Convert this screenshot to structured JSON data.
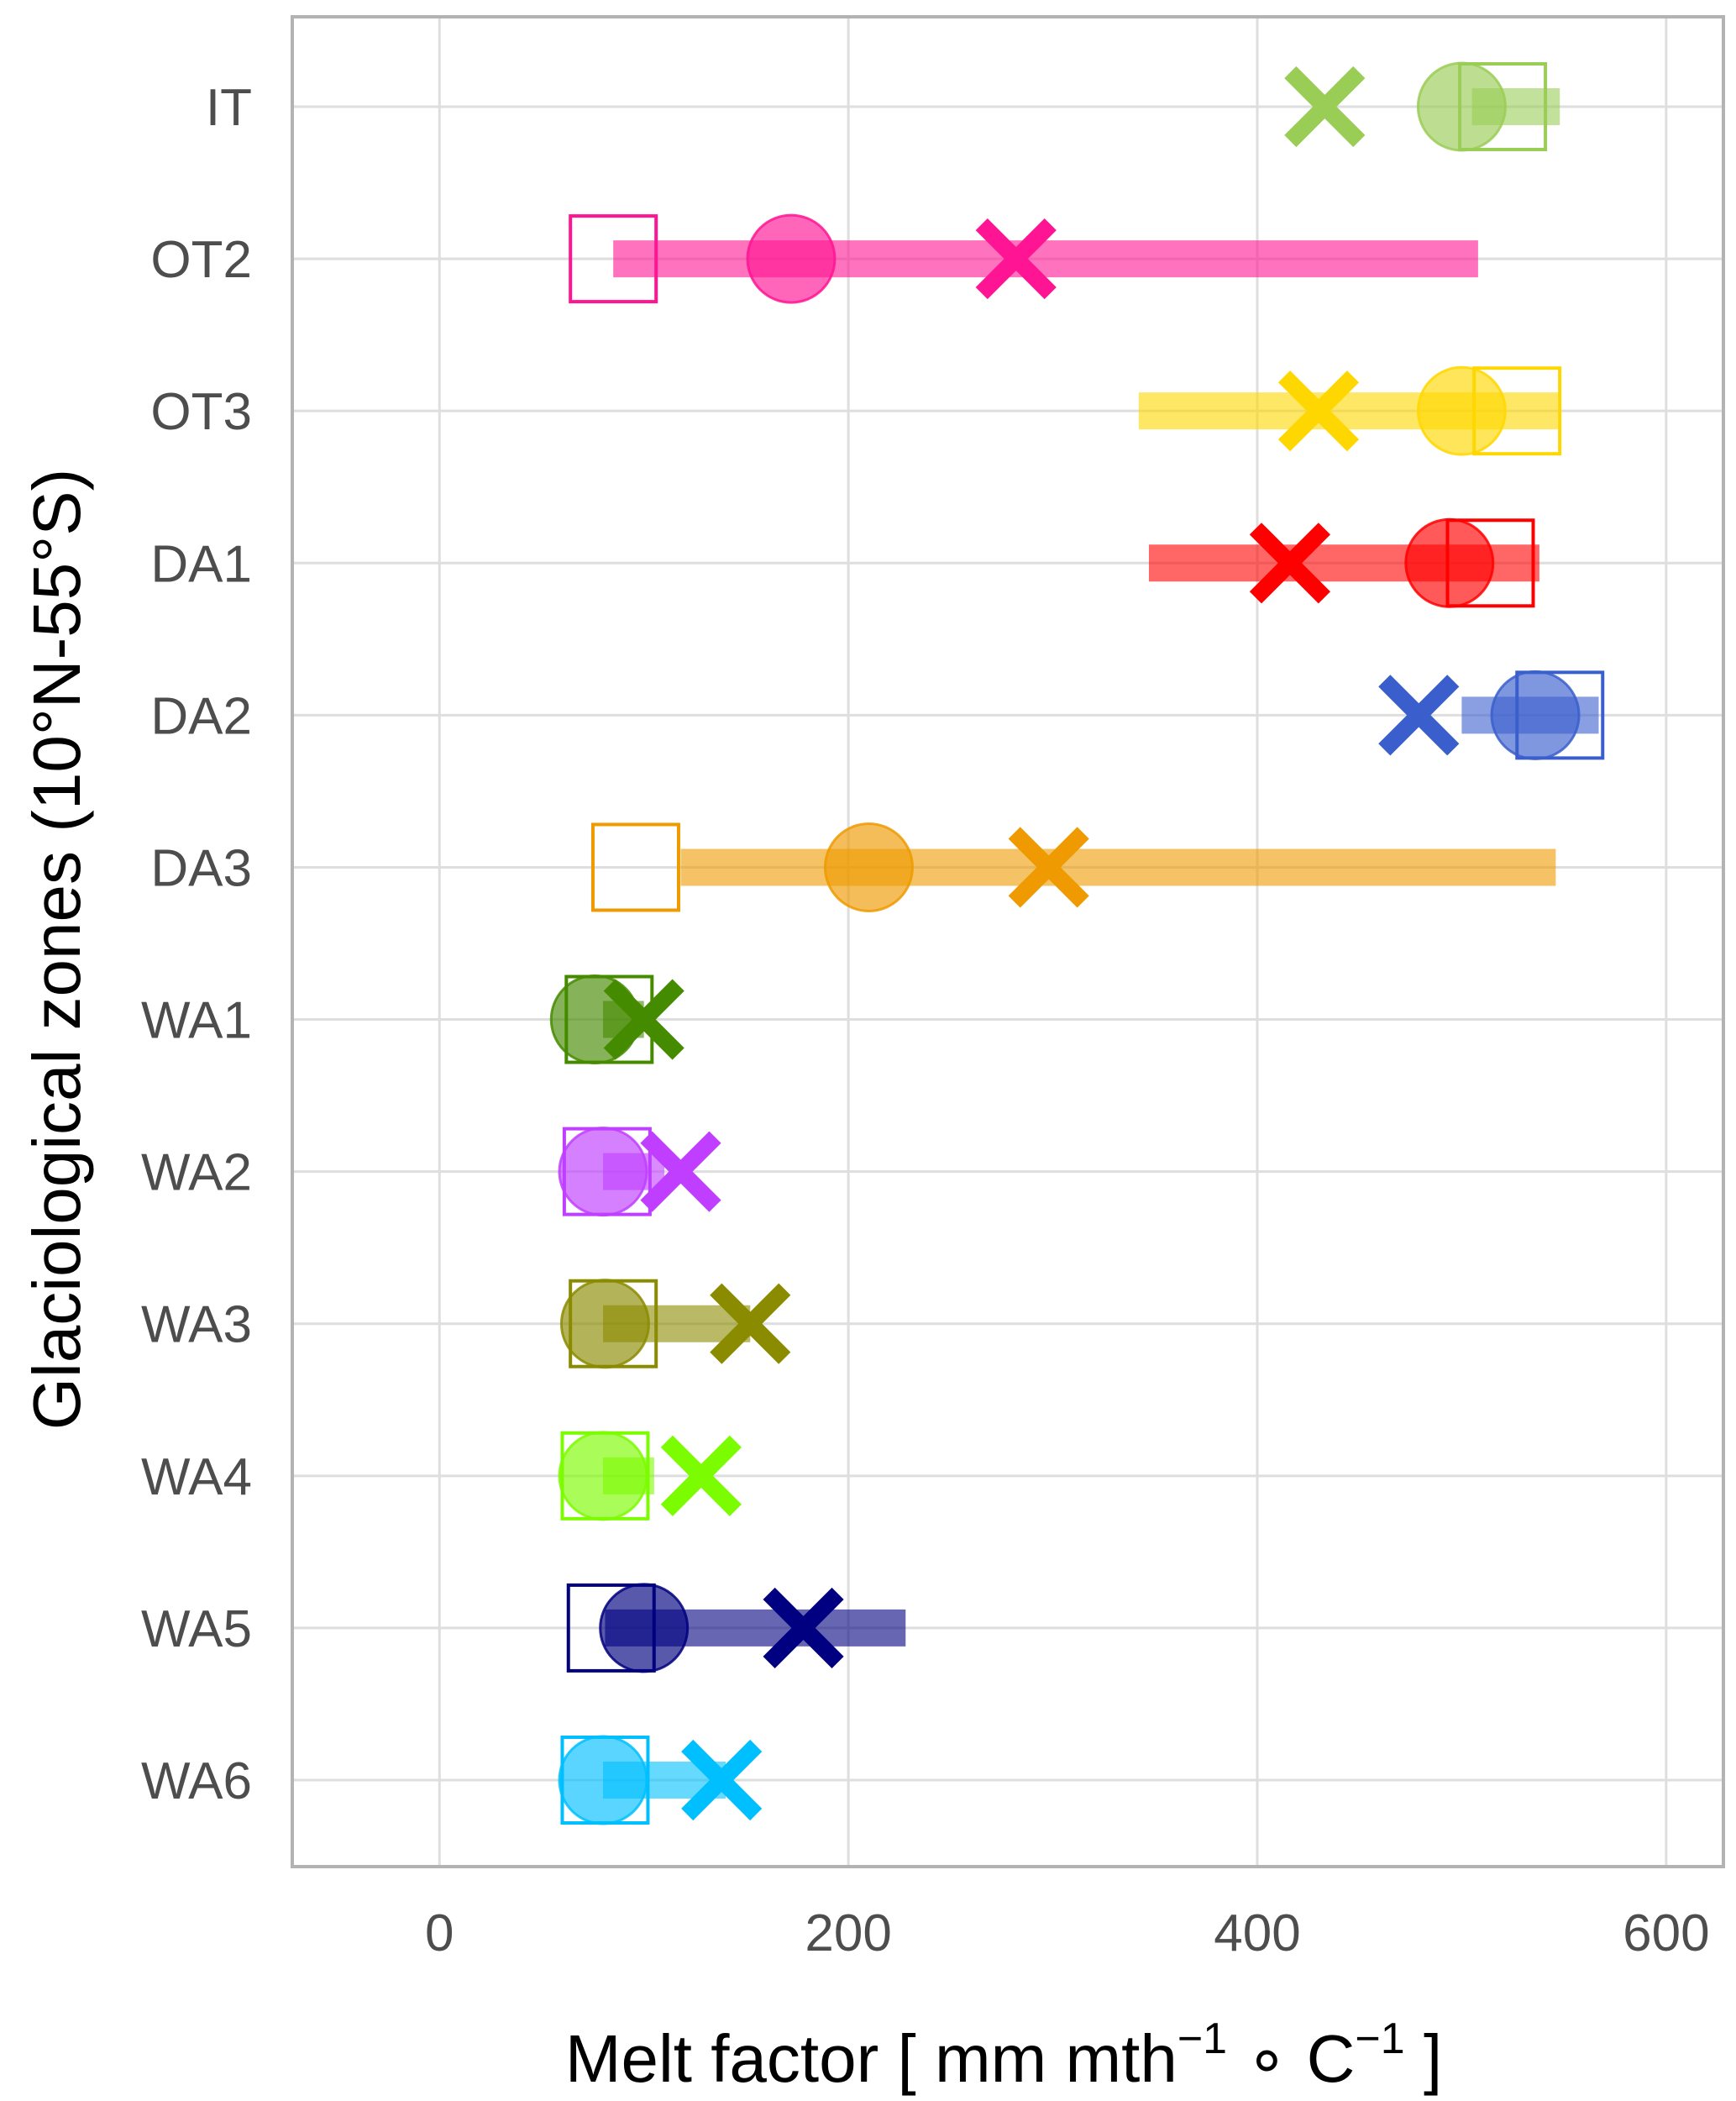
{
  "chart_data": {
    "type": "scatter",
    "xlabel": {
      "prefix": "Melt factor [ mm mth",
      "sup1": "−1",
      "middle": " ∘ C",
      "sup2": "−1",
      "suffix": " ]"
    },
    "ylabel": "Glaciological zones (10°N-55°S)",
    "xlim": [
      -72,
      628
    ],
    "x_ticks": [
      0,
      200,
      400,
      600
    ],
    "x_tick_labels": [
      "0",
      "200",
      "400",
      "600"
    ],
    "grid": true,
    "legend": "none",
    "categories": [
      "IT",
      "OT2",
      "OT3",
      "DA1",
      "DA2",
      "DA3",
      "WA1",
      "WA2",
      "WA3",
      "WA4",
      "WA5",
      "WA6"
    ],
    "series": [
      {
        "category": "IT",
        "color": "#9acd56",
        "range": [
          505,
          548
        ],
        "circle": 500,
        "square": 520,
        "cross": 433
      },
      {
        "category": "OT2",
        "color": "#ff1493",
        "range": [
          85,
          508
        ],
        "circle": 172,
        "square": 85,
        "cross": 282
      },
      {
        "category": "OT3",
        "color": "#ffd700",
        "range": [
          342,
          548
        ],
        "circle": 500,
        "square": 527,
        "cross": 430
      },
      {
        "category": "DA1",
        "color": "#ff0000",
        "range": [
          347,
          538
        ],
        "circle": 494,
        "square": 514,
        "cross": 416
      },
      {
        "category": "DA2",
        "color": "#3a5fcd",
        "range": [
          500,
          567
        ],
        "circle": 536,
        "square": 548,
        "cross": 479
      },
      {
        "category": "DA3",
        "color": "#ee9a00",
        "range": [
          118,
          546
        ],
        "circle": 210,
        "square": 96,
        "cross": 298
      },
      {
        "category": "WA1",
        "color": "#458b00",
        "range": [
          80,
          100
        ],
        "circle": 76,
        "square": 83,
        "cross": 100
      },
      {
        "category": "WA2",
        "color": "#bf3eff",
        "range": [
          80,
          110
        ],
        "circle": 80,
        "square": 82,
        "cross": 118
      },
      {
        "category": "WA3",
        "color": "#8b8b00",
        "range": [
          80,
          152
        ],
        "circle": 81,
        "square": 85,
        "cross": 152
      },
      {
        "category": "WA4",
        "color": "#7cfc00",
        "range": [
          80,
          105
        ],
        "circle": 80,
        "square": 81,
        "cross": 128
      },
      {
        "category": "WA5",
        "color": "#000080",
        "range": [
          81,
          228
        ],
        "circle": 100,
        "square": 84,
        "cross": 178
      },
      {
        "category": "WA6",
        "color": "#00bfff",
        "range": [
          80,
          140
        ],
        "circle": 80,
        "square": 81,
        "cross": 138
      }
    ]
  }
}
